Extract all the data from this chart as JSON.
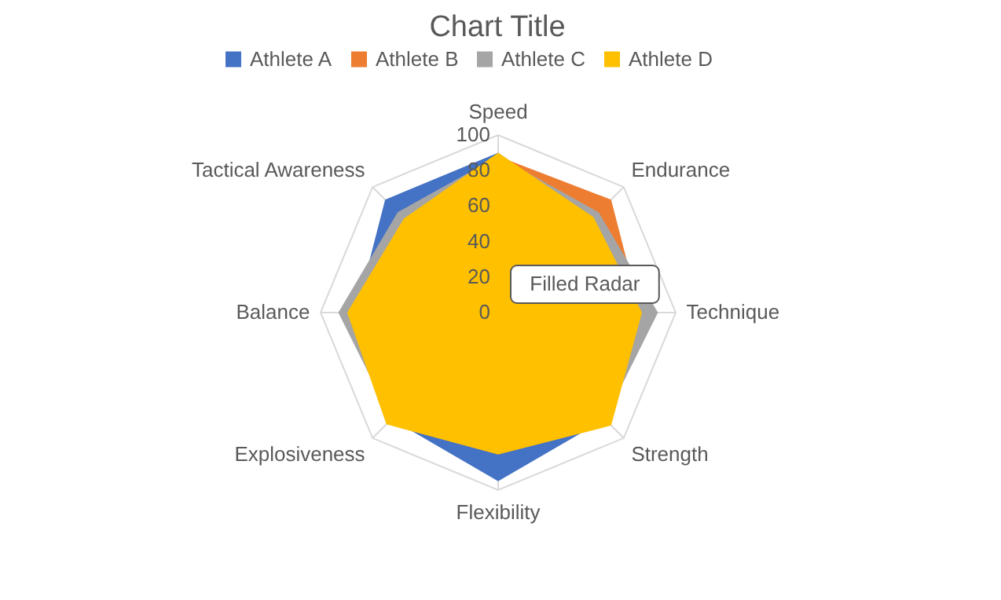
{
  "chart_data": {
    "type": "radar",
    "title": "Chart Title",
    "categories": [
      "Speed",
      "Endurance",
      "Technique",
      "Strength",
      "Flexibility",
      "Explosiveness",
      "Balance",
      "Tactical Awareness"
    ],
    "series": [
      {
        "name": "Athlete A",
        "color": "#4472c4",
        "values": [
          90,
          75,
          75,
          85,
          95,
          85,
          80,
          90
        ]
      },
      {
        "name": "Athlete B",
        "color": "#ed7d31",
        "values": [
          88,
          90,
          80,
          80,
          70,
          80,
          75,
          70
        ]
      },
      {
        "name": "Athlete C",
        "color": "#a5a5a5",
        "values": [
          88,
          80,
          90,
          85,
          75,
          85,
          90,
          80
        ]
      },
      {
        "name": "Athlete D",
        "color": "#ffc000",
        "values": [
          90,
          76,
          81,
          90,
          80,
          89,
          85,
          75
        ]
      }
    ],
    "ylim": [
      0,
      100
    ],
    "yticks": [
      0,
      20,
      40,
      60,
      80,
      100
    ],
    "grid": true,
    "legend": "top",
    "annotations": [
      "Filled Radar"
    ]
  }
}
